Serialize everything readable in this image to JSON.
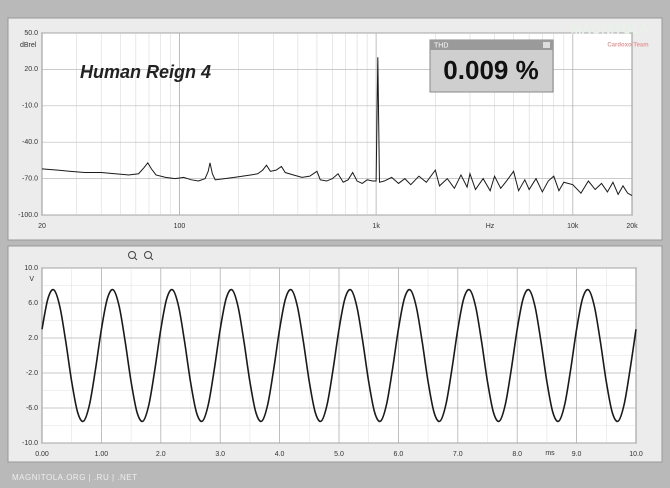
{
  "chart_data": [
    {
      "type": "line",
      "annotation": "Human Reign 4",
      "thd_box": {
        "title": "THD",
        "value": "0.009 %"
      },
      "ylabel": "dBrel",
      "xlabel": "Hz",
      "xscale": "log",
      "grid": true,
      "xlim": [
        20,
        20000
      ],
      "ylim": [
        -100,
        50
      ],
      "xticks": [
        20,
        100,
        {
          "value": 1000,
          "label": "1k"
        },
        {
          "value": 10000,
          "label": "10k"
        },
        {
          "value": 20000,
          "label": "20k"
        }
      ],
      "yticks": [
        {
          "value": 50,
          "label": "50.0"
        },
        {
          "value": 20,
          "label": "20.0"
        },
        {
          "value": -10,
          "label": "-10.0"
        },
        {
          "value": -40,
          "label": "-40.0"
        },
        {
          "value": -70,
          "label": "-70.0"
        },
        {
          "value": -100,
          "label": "-100.0"
        }
      ],
      "x": [
        20,
        24,
        28,
        33,
        40,
        47,
        55,
        62,
        66,
        69,
        72,
        76,
        85,
        95,
        105,
        115,
        125,
        135,
        140,
        143,
        147,
        152,
        170,
        190,
        210,
        230,
        250,
        265,
        277,
        290,
        310,
        330,
        345,
        380,
        420,
        460,
        500,
        520,
        560,
        600,
        640,
        680,
        720,
        760,
        800,
        850,
        900,
        960,
        1000,
        1020,
        1040,
        1100,
        1200,
        1300,
        1400,
        1500,
        1650,
        1800,
        2000,
        2100,
        2300,
        2500,
        2700,
        2900,
        3000,
        3200,
        3500,
        3800,
        4000,
        4300,
        4600,
        5000,
        5300,
        5700,
        6000,
        6500,
        7000,
        7500,
        8000,
        8500,
        9000,
        10000,
        11000,
        12000,
        13000,
        14000,
        15000,
        16000,
        17000,
        18000,
        19000,
        20000
      ],
      "series": [
        {
          "color": "#1a1a1a",
          "values": [
            -62,
            -63,
            -64,
            -65,
            -65,
            -66,
            -67,
            -66,
            -61,
            -57,
            -62,
            -67,
            -69,
            -70,
            -69,
            -71,
            -72,
            -70,
            -64,
            -57,
            -66,
            -71,
            -70,
            -69,
            -68,
            -67,
            -66,
            -63,
            -59,
            -64,
            -63,
            -60,
            -65,
            -67,
            -69,
            -68,
            -64,
            -71,
            -72,
            -70,
            -66,
            -73,
            -71,
            -65,
            -72,
            -74,
            -71,
            -72,
            -72,
            30,
            -73,
            -72,
            -69,
            -74,
            -70,
            -75,
            -68,
            -73,
            -63,
            -76,
            -70,
            -78,
            -67,
            -77,
            -66,
            -79,
            -70,
            -80,
            -68,
            -78,
            -72,
            -64,
            -80,
            -71,
            -79,
            -70,
            -81,
            -72,
            -68,
            -80,
            -73,
            -75,
            -82,
            -72,
            -79,
            -74,
            -81,
            -73,
            -83,
            -76,
            -82,
            -84
          ]
        }
      ]
    },
    {
      "type": "line",
      "ylabel": "V",
      "xlabel": "ms",
      "grid": true,
      "xlim": [
        0,
        10
      ],
      "ylim": [
        -10,
        10
      ],
      "xticks": [
        {
          "value": 0,
          "label": "0.00"
        },
        {
          "value": 1,
          "label": "1.00"
        },
        {
          "value": 2,
          "label": "2.0"
        },
        {
          "value": 3,
          "label": "3.0"
        },
        {
          "value": 4,
          "label": "4.0"
        },
        {
          "value": 5,
          "label": "5.0"
        },
        {
          "value": 6,
          "label": "6.0"
        },
        {
          "value": 7,
          "label": "7.0"
        },
        {
          "value": 8,
          "label": "8.0"
        },
        {
          "value": 9,
          "label": "9.0"
        },
        {
          "value": 10,
          "label": "10.0"
        }
      ],
      "yticks": [
        {
          "value": 10,
          "label": "10.0"
        },
        {
          "value": 6,
          "label": "6.0"
        },
        {
          "value": 2,
          "label": "2.0"
        },
        {
          "value": -2,
          "label": "-2.0"
        },
        {
          "value": -6,
          "label": "-6.0"
        },
        {
          "value": -10,
          "label": "-10.0"
        }
      ],
      "x": [
        0,
        0.1,
        0.2,
        0.3,
        0.4,
        0.5,
        0.6,
        0.7,
        0.8,
        0.9,
        1,
        1.1,
        1.2,
        1.3,
        1.4,
        1.5,
        1.6,
        1.7,
        1.8,
        1.9,
        2,
        2.1,
        2.2,
        2.3,
        2.4,
        2.5,
        2.6,
        2.7,
        2.8,
        2.9,
        3,
        3.1,
        3.2,
        3.3,
        3.4,
        3.5,
        3.6,
        3.7,
        3.8,
        3.9,
        4,
        4.1,
        4.2,
        4.3,
        4.4,
        4.5,
        4.6,
        4.7,
        4.8,
        4.9,
        5,
        5.1,
        5.2,
        5.3,
        5.4,
        5.5,
        5.6,
        5.7,
        5.8,
        5.9,
        6,
        6.1,
        6.2,
        6.3,
        6.4,
        6.5,
        6.6,
        6.7,
        6.8,
        6.9,
        7,
        7.1,
        7.2,
        7.3,
        7.4,
        7.5,
        7.6,
        7.7,
        7.8,
        7.9,
        8,
        8.1,
        8.2,
        8.3,
        8.4,
        8.5,
        8.6,
        8.7,
        8.8,
        8.9,
        9,
        9.1,
        9.2,
        9.3,
        9.4,
        9.5,
        9.6,
        9.7,
        9.8,
        9.9,
        10
      ],
      "series": [
        {
          "color": "#1a1a1a",
          "values": [
            3.0,
            6.5,
            7.5,
            5.6,
            1.6,
            -3.0,
            -6.5,
            -7.5,
            -5.6,
            -1.6,
            3.0,
            6.5,
            7.5,
            5.6,
            1.6,
            -3.0,
            -6.5,
            -7.5,
            -5.6,
            -1.6,
            3.0,
            6.5,
            7.5,
            5.6,
            1.6,
            -3.0,
            -6.5,
            -7.5,
            -5.6,
            -1.6,
            3.0,
            6.5,
            7.5,
            5.6,
            1.6,
            -3.0,
            -6.5,
            -7.5,
            -5.6,
            -1.6,
            3.0,
            6.5,
            7.5,
            5.6,
            1.6,
            -3.0,
            -6.5,
            -7.5,
            -5.6,
            -1.6,
            3.0,
            6.5,
            7.5,
            5.6,
            1.6,
            -3.0,
            -6.5,
            -7.5,
            -5.6,
            -1.6,
            3.0,
            6.5,
            7.5,
            5.6,
            1.6,
            -3.0,
            -6.5,
            -7.5,
            -5.6,
            -1.6,
            3.0,
            6.5,
            7.5,
            5.6,
            1.6,
            -3.0,
            -6.5,
            -7.5,
            -5.6,
            -1.6,
            3.0,
            6.5,
            7.5,
            5.6,
            1.6,
            -3.0,
            -6.5,
            -7.5,
            -5.6,
            -1.6,
            3.0,
            6.5,
            7.5,
            5.6,
            1.6,
            -3.0,
            -6.5,
            -7.5,
            -5.6,
            -1.6,
            3.0
          ]
        }
      ]
    }
  ],
  "watermark": {
    "logo": "MAGNITOLA",
    "tagline": "Cardoxo Team",
    "footer": "MAGNITOLA.ORG | .RU | .NET"
  }
}
